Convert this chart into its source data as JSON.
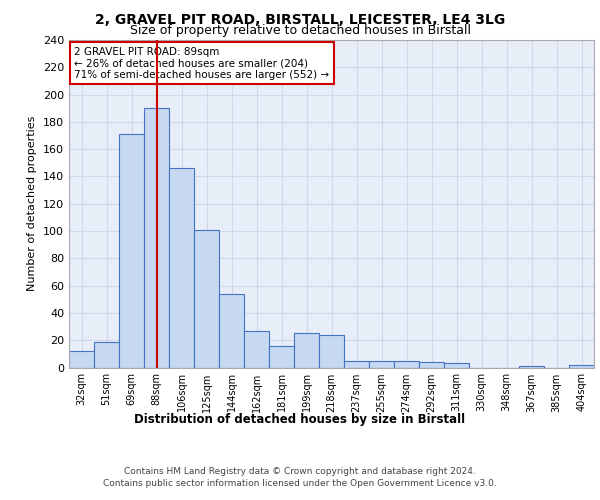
{
  "title1": "2, GRAVEL PIT ROAD, BIRSTALL, LEICESTER, LE4 3LG",
  "title2": "Size of property relative to detached houses in Birstall",
  "xlabel": "Distribution of detached houses by size in Birstall",
  "ylabel": "Number of detached properties",
  "categories": [
    "32sqm",
    "51sqm",
    "69sqm",
    "88sqm",
    "106sqm",
    "125sqm",
    "144sqm",
    "162sqm",
    "181sqm",
    "199sqm",
    "218sqm",
    "237sqm",
    "255sqm",
    "274sqm",
    "292sqm",
    "311sqm",
    "330sqm",
    "348sqm",
    "367sqm",
    "385sqm",
    "404sqm"
  ],
  "values": [
    12,
    19,
    171,
    190,
    146,
    101,
    54,
    27,
    16,
    25,
    24,
    5,
    5,
    5,
    4,
    3,
    0,
    0,
    1,
    0,
    2
  ],
  "bar_color": "#c6d9f0",
  "bar_edge_color": "#4472c4",
  "bar_highlight_index": 3,
  "highlight_line_color": "#cc0000",
  "annotation_line1": "2 GRAVEL PIT ROAD: 89sqm",
  "annotation_line2": "← 26% of detached houses are smaller (204)",
  "annotation_line3": "71% of semi-detached houses are larger (552) →",
  "annotation_box_color": "#ffffff",
  "annotation_box_edge": "#cc0000",
  "ylim": [
    0,
    240
  ],
  "yticks": [
    0,
    20,
    40,
    60,
    80,
    100,
    120,
    140,
    160,
    180,
    200,
    220,
    240
  ],
  "grid_color": "#d0d8e8",
  "footer_line1": "Contains HM Land Registry data © Crown copyright and database right 2024.",
  "footer_line2": "Contains public sector information licensed under the Open Government Licence v3.0.",
  "bg_color": "#e8eef8"
}
